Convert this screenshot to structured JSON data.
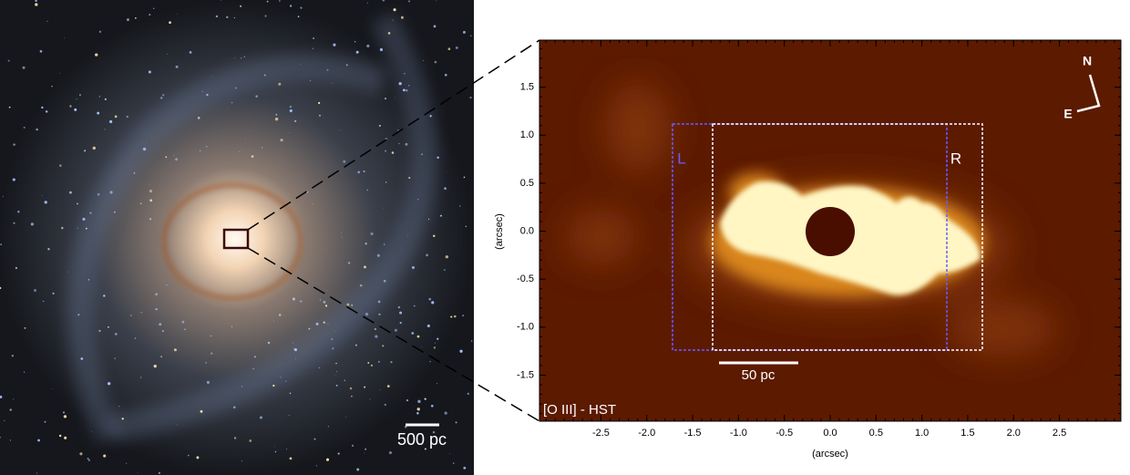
{
  "left_panel": {
    "scale_label": "500 pc"
  },
  "right_panel": {
    "label": "[O III] - HST",
    "scale_label": "50 pc",
    "box_left_label": "L",
    "box_right_label": "R",
    "compass": {
      "north": "N",
      "east": "E"
    },
    "xlabel": "(arcsec)",
    "ylabel": "(arcsec)",
    "xlim": [
      -3.17,
      3.17
    ],
    "ylim": [
      -1.98,
      1.99
    ],
    "xticks": [
      -2.5,
      {
        "value": -2,
        "label": "-2.0"
      },
      -1.5,
      {
        "value": -1,
        "label": "-1.0"
      },
      -0.5,
      {
        "value": 0,
        "label": "0.0"
      },
      0.5,
      {
        "value": 1,
        "label": "1.0"
      },
      1.5,
      {
        "value": 2,
        "label": "2.0"
      },
      2.5
    ],
    "yticks": [
      1.5,
      {
        "value": 1,
        "label": "1.0"
      },
      0.5,
      {
        "value": 0,
        "label": "0.0"
      },
      -0.5,
      {
        "value": -1,
        "label": "-1.0"
      },
      -1.5
    ]
  }
}
